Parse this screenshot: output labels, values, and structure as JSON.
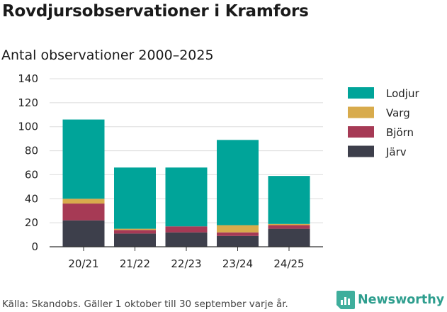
{
  "title": "Rovdjursobservationer i Kramfors",
  "subtitle": "Antal observationer 2000–2025",
  "footer": "Källa: Skandobs. Gäller 1 oktober till 30 september varje år.",
  "logo_text": "Newsworthy",
  "chart_data": {
    "type": "bar",
    "stacked": true,
    "categories": [
      "20/21",
      "21/22",
      "22/23",
      "23/24",
      "24/25"
    ],
    "series": [
      {
        "name": "Järv",
        "color": "#3d3f4b",
        "values": [
          22,
          11,
          12,
          9,
          15
        ]
      },
      {
        "name": "Björn",
        "color": "#a63a55",
        "values": [
          14,
          3,
          5,
          3,
          3
        ]
      },
      {
        "name": "Varg",
        "color": "#d8ab4c",
        "values": [
          4,
          1,
          0,
          6,
          1
        ]
      },
      {
        "name": "Lodjur",
        "color": "#00a499",
        "values": [
          66,
          51,
          49,
          71,
          40
        ]
      }
    ],
    "legend_order": [
      "Lodjur",
      "Varg",
      "Björn",
      "Järv"
    ],
    "ylim": [
      0,
      140
    ],
    "yticks": [
      0,
      20,
      40,
      60,
      80,
      100,
      120,
      140
    ],
    "xlabel": "",
    "ylabel": "",
    "grid": true,
    "legend_position": "right"
  }
}
